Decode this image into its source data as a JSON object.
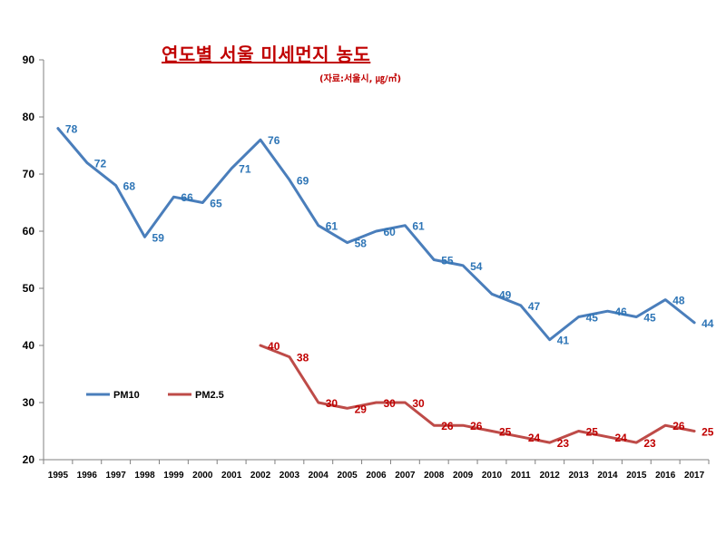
{
  "chart_data": {
    "type": "line",
    "title": "연도별 서울 미세먼지 농도",
    "subtitle": "(자료:서울시, ㎍/㎥)",
    "x": [
      "1995",
      "1996",
      "1997",
      "1998",
      "1999",
      "2000",
      "2001",
      "2002",
      "2003",
      "2004",
      "2005",
      "2006",
      "2007",
      "2008",
      "2009",
      "2010",
      "2011",
      "2012",
      "2013",
      "2014",
      "2015",
      "2016",
      "2017"
    ],
    "ylim": [
      20,
      90
    ],
    "yticks": [
      "20",
      "30",
      "40",
      "50",
      "60",
      "70",
      "80",
      "90"
    ],
    "legend_position": "lower-left",
    "series": [
      {
        "name": "PM10",
        "color": "#4a7ebb",
        "label_color": "#2e75b6",
        "values": [
          78,
          72,
          68,
          59,
          66,
          65,
          71,
          76,
          69,
          61,
          58,
          60,
          61,
          55,
          54,
          49,
          47,
          41,
          45,
          46,
          45,
          48,
          44
        ]
      },
      {
        "name": "PM2.5",
        "color": "#be4b48",
        "label_color": "#c00000",
        "values": [
          null,
          null,
          null,
          null,
          null,
          null,
          null,
          40,
          38,
          30,
          29,
          30,
          30,
          26,
          26,
          25,
          24,
          23,
          25,
          24,
          23,
          26,
          25
        ]
      }
    ]
  }
}
